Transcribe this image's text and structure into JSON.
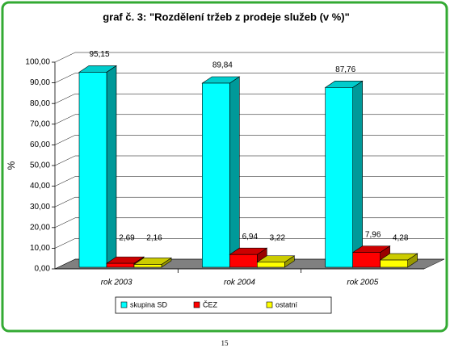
{
  "chart_data": {
    "type": "bar3d",
    "title": "graf č. 3:    \"Rozdělení tržeb z prodeje služeb (v %)\"",
    "y_label": "%",
    "categories": [
      "rok 2003",
      "rok 2004",
      "rok 2005"
    ],
    "series": [
      {
        "name": "skupina SD",
        "color": "#00ffff",
        "values": [
          95.15,
          89.84,
          87.76
        ],
        "value_labels": [
          "95,15",
          "89,84",
          "87,76"
        ]
      },
      {
        "name": "ČEZ",
        "color": "#ff0000",
        "values": [
          2.69,
          6.94,
          7.96
        ],
        "value_labels": [
          "2,69",
          "6,94",
          "7,96"
        ]
      },
      {
        "name": "ostatní",
        "color": "#ffff00",
        "values": [
          2.16,
          3.22,
          4.28
        ],
        "value_labels": [
          "2,16",
          "3,22",
          "4,28"
        ]
      }
    ],
    "ylim": [
      0,
      100
    ],
    "yticks": [
      {
        "value": 0,
        "label": "0,00"
      },
      {
        "value": 10,
        "label": "10,00"
      },
      {
        "value": 20,
        "label": "20,00"
      },
      {
        "value": 30,
        "label": "30,00"
      },
      {
        "value": 40,
        "label": "40,00"
      },
      {
        "value": 50,
        "label": "50,00"
      },
      {
        "value": 60,
        "label": "60,00"
      },
      {
        "value": 70,
        "label": "70,00"
      },
      {
        "value": 80,
        "label": "80,00"
      },
      {
        "value": 90,
        "label": "90,00"
      },
      {
        "value": 100,
        "label": "100,00"
      }
    ],
    "grid": true
  },
  "page_number": "15"
}
